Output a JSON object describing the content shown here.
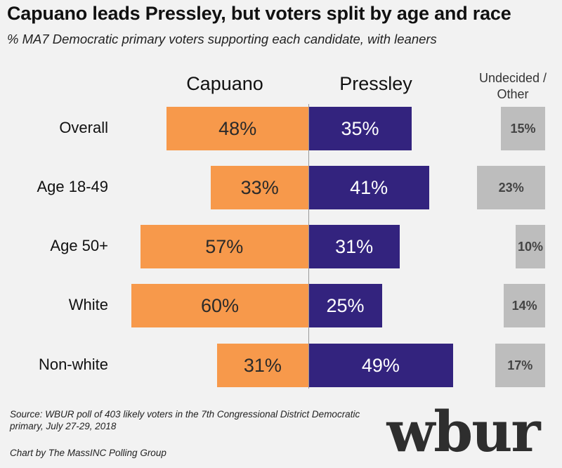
{
  "title": "Capuano leads Pressley, but voters split by age and race",
  "subtitle": "% MA7 Democratic primary voters supporting each candidate, with leaners",
  "source": "Source: WBUR poll of 403 likely voters in the 7th Congressional District Democratic primary, July 27-29, 2018",
  "credit": "Chart by The MassINC Polling Group",
  "logo_text": "wbur",
  "colors": {
    "capuano": "#f7994b",
    "pressley": "#33237e",
    "other": "#bdbdbd",
    "background": "#f2f2f2"
  },
  "chart_data": {
    "type": "bar",
    "orientation": "horizontal-diverging",
    "categories": [
      "Overall",
      "Age 18-49",
      "Age 50+",
      "White",
      "Non-white"
    ],
    "series": [
      {
        "name": "Capuano",
        "values": [
          48,
          33,
          57,
          60,
          31
        ],
        "labels": [
          "48%",
          "33%",
          "57%",
          "60%",
          "31%"
        ]
      },
      {
        "name": "Pressley",
        "values": [
          35,
          41,
          31,
          25,
          49
        ],
        "labels": [
          "35%",
          "41%",
          "31%",
          "25%",
          "49%"
        ]
      },
      {
        "name": "Undecided / Other",
        "values": [
          15,
          23,
          10,
          14,
          17
        ],
        "labels": [
          "15%",
          "23%",
          "10%",
          "14%",
          "17%"
        ]
      }
    ],
    "column_headers": {
      "capuano": "Capuano",
      "pressley": "Pressley",
      "other_line1": "Undecided /",
      "other_line2": "Other"
    }
  }
}
